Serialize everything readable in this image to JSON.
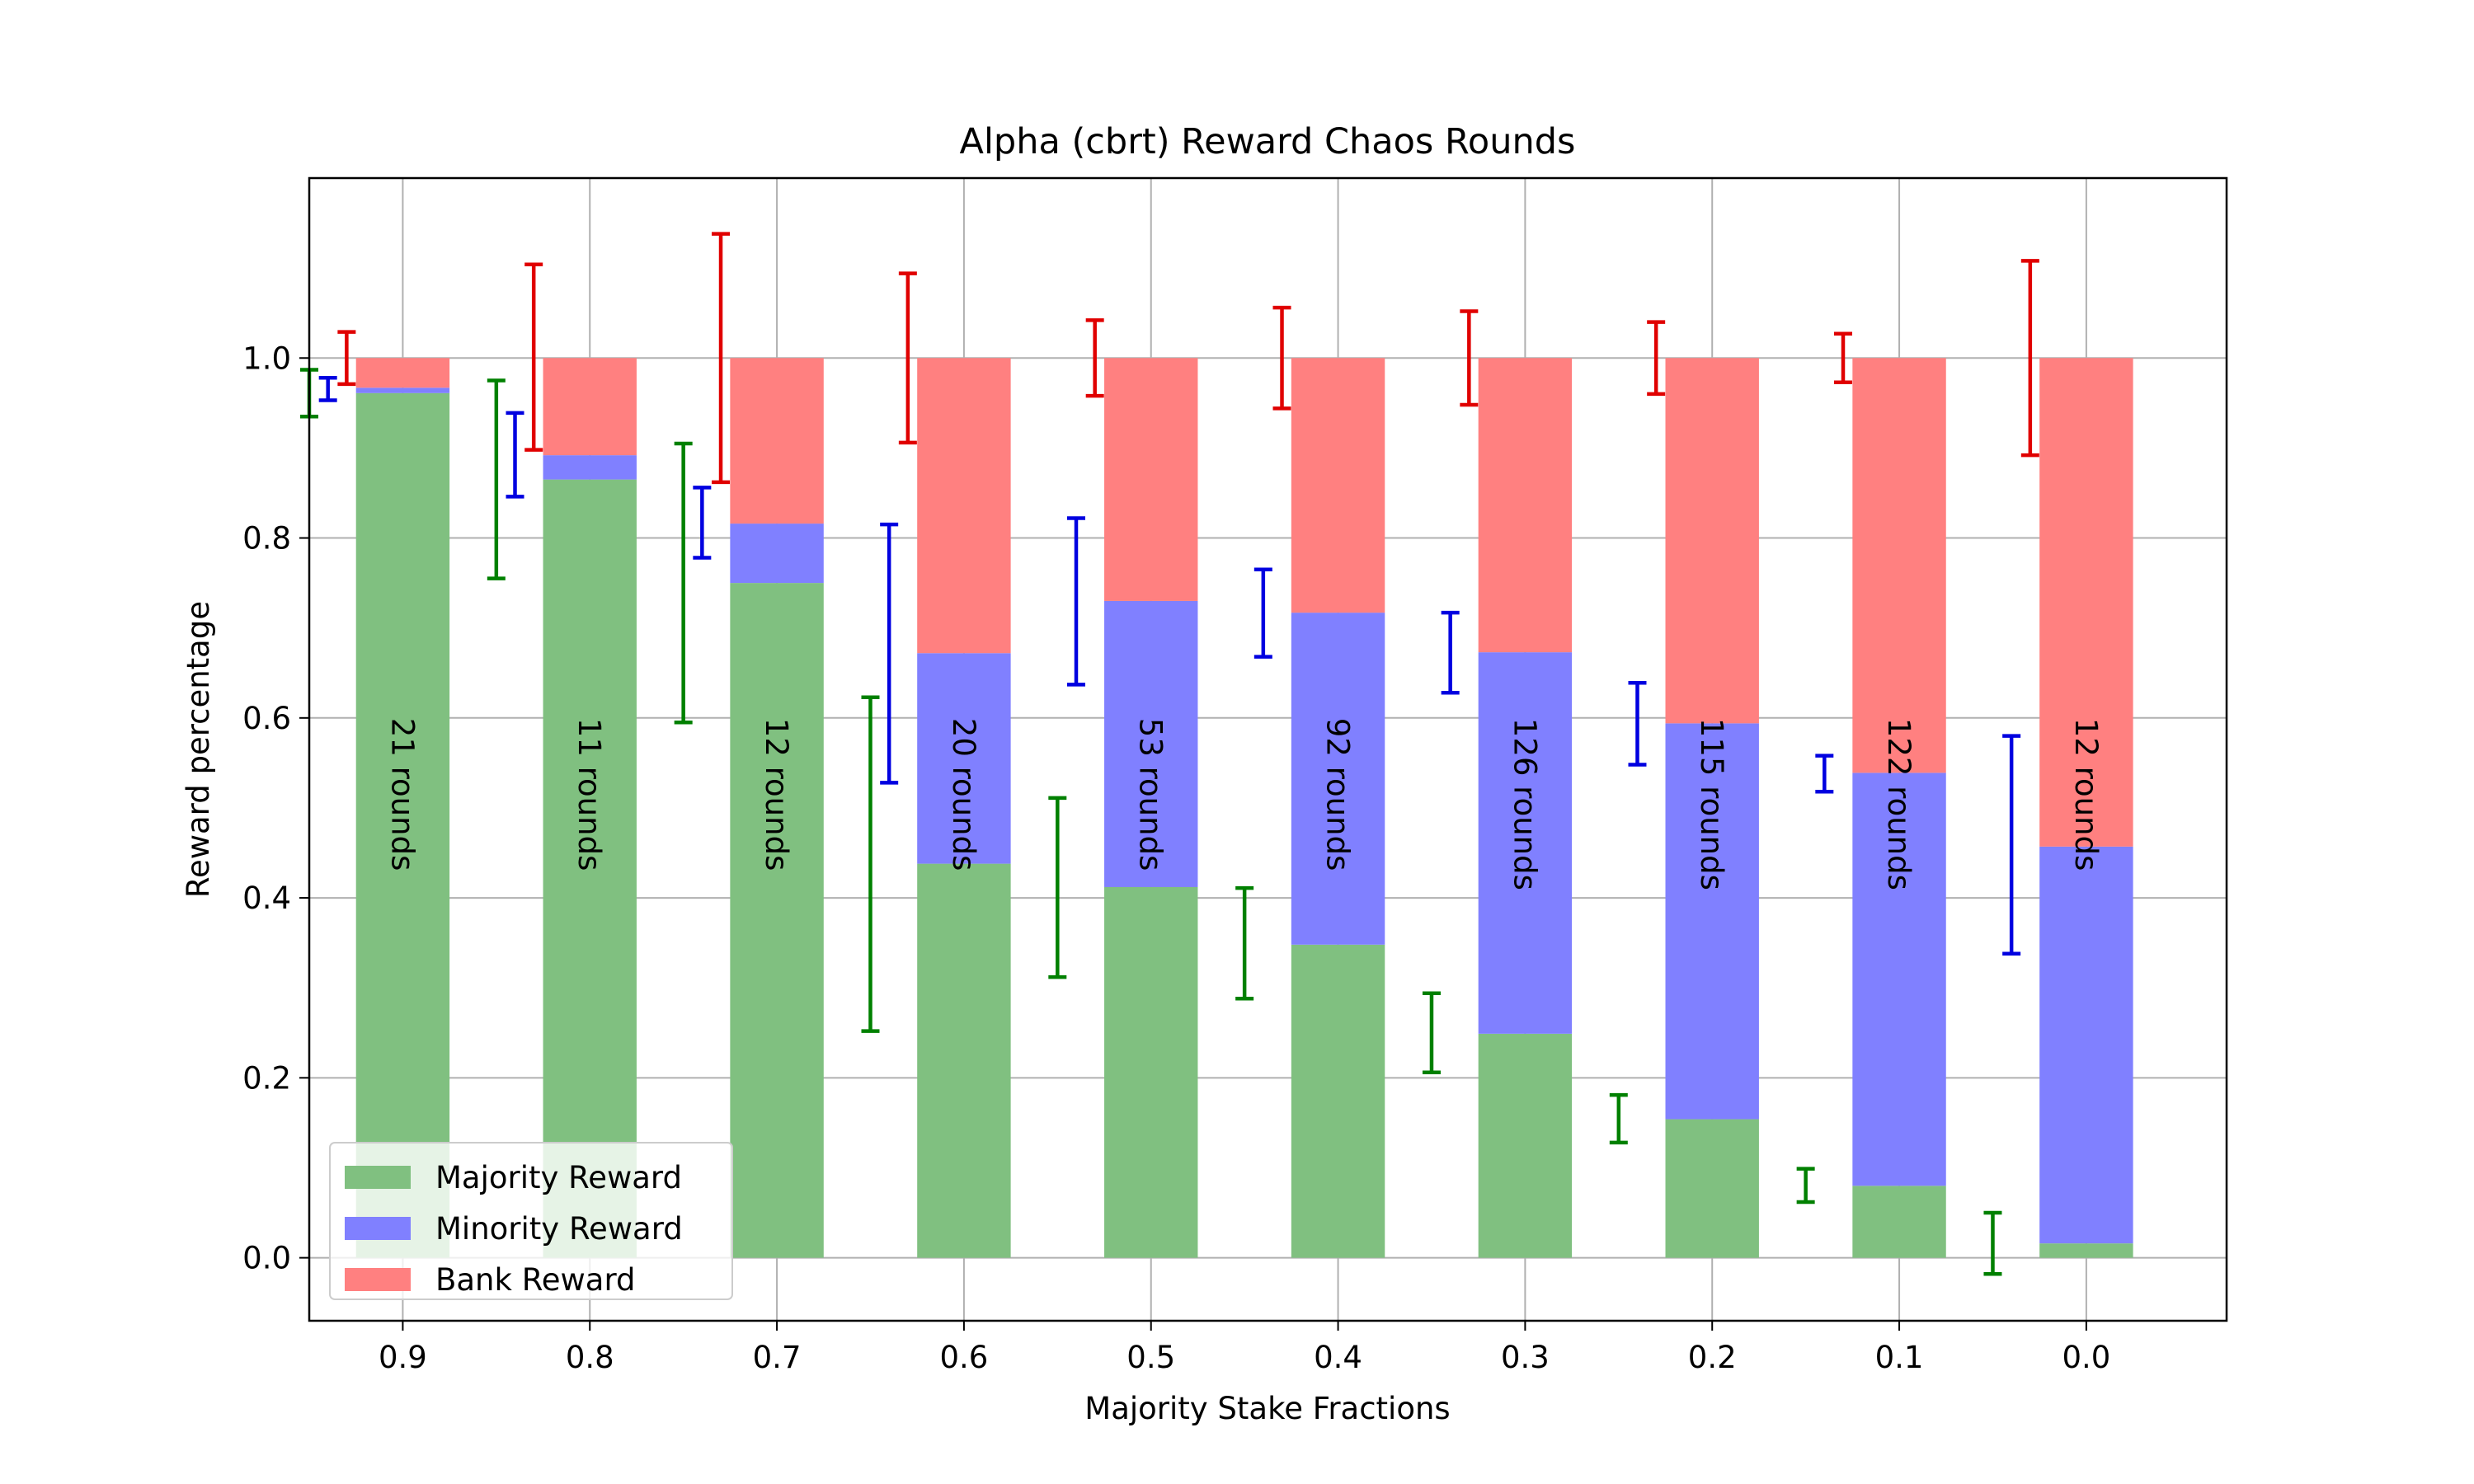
{
  "chart_data": {
    "type": "bar",
    "title": "Alpha (cbrt) Reward Chaos Rounds",
    "xlabel": "Majority Stake Fractions",
    "ylabel": "Reward percentage",
    "ylim": [
      -0.07,
      1.2
    ],
    "yticks": [
      "0.0",
      "0.2",
      "0.4",
      "0.6",
      "0.8",
      "1.0"
    ],
    "categories": [
      "0.9",
      "0.8",
      "0.7",
      "0.6",
      "0.5",
      "0.4",
      "0.3",
      "0.2",
      "0.1",
      "0.0"
    ],
    "grid": true,
    "legend_position": "lower-left",
    "series": [
      {
        "name": "Majority Reward",
        "color": "#80c080",
        "values": [
          0.961,
          0.865,
          0.75,
          0.438,
          0.412,
          0.348,
          0.249,
          0.154,
          0.08,
          0.016
        ],
        "error_bars": {
          "color": "#008000",
          "low": [
            0.935,
            0.755,
            0.595,
            0.252,
            0.312,
            0.288,
            0.206,
            0.128,
            0.062,
            -0.018
          ],
          "high": [
            0.987,
            0.975,
            0.905,
            0.623,
            0.511,
            0.411,
            0.294,
            0.181,
            0.099,
            0.05
          ]
        }
      },
      {
        "name": "Minority Reward",
        "color": "#8080ff",
        "values": [
          0.006,
          0.027,
          0.066,
          0.234,
          0.318,
          0.369,
          0.424,
          0.44,
          0.459,
          0.441
        ],
        "error_bars": {
          "color": "#0000e0",
          "low": [
            0.953,
            0.846,
            0.778,
            0.528,
            0.637,
            0.668,
            0.628,
            0.548,
            0.518,
            0.338
          ],
          "high": [
            0.978,
            0.939,
            0.856,
            0.815,
            0.822,
            0.765,
            0.717,
            0.639,
            0.558,
            0.58
          ]
        }
      },
      {
        "name": "Bank Reward",
        "color": "#ff8080",
        "values": [
          0.033,
          0.108,
          0.184,
          0.328,
          0.27,
          0.283,
          0.327,
          0.406,
          0.461,
          0.543
        ],
        "error_bars": {
          "color": "#e00000",
          "low": [
            0.971,
            0.898,
            0.862,
            0.906,
            0.958,
            0.944,
            0.948,
            0.96,
            0.973,
            0.892
          ],
          "high": [
            1.029,
            1.104,
            1.138,
            1.094,
            1.042,
            1.056,
            1.052,
            1.04,
            1.027,
            1.108
          ]
        }
      }
    ],
    "annotations": [
      "21 rounds",
      "11 rounds",
      "12 rounds",
      "20 rounds",
      "53 rounds",
      "92 rounds",
      "126 rounds",
      "115 rounds",
      "122 rounds",
      "12 rounds"
    ]
  }
}
